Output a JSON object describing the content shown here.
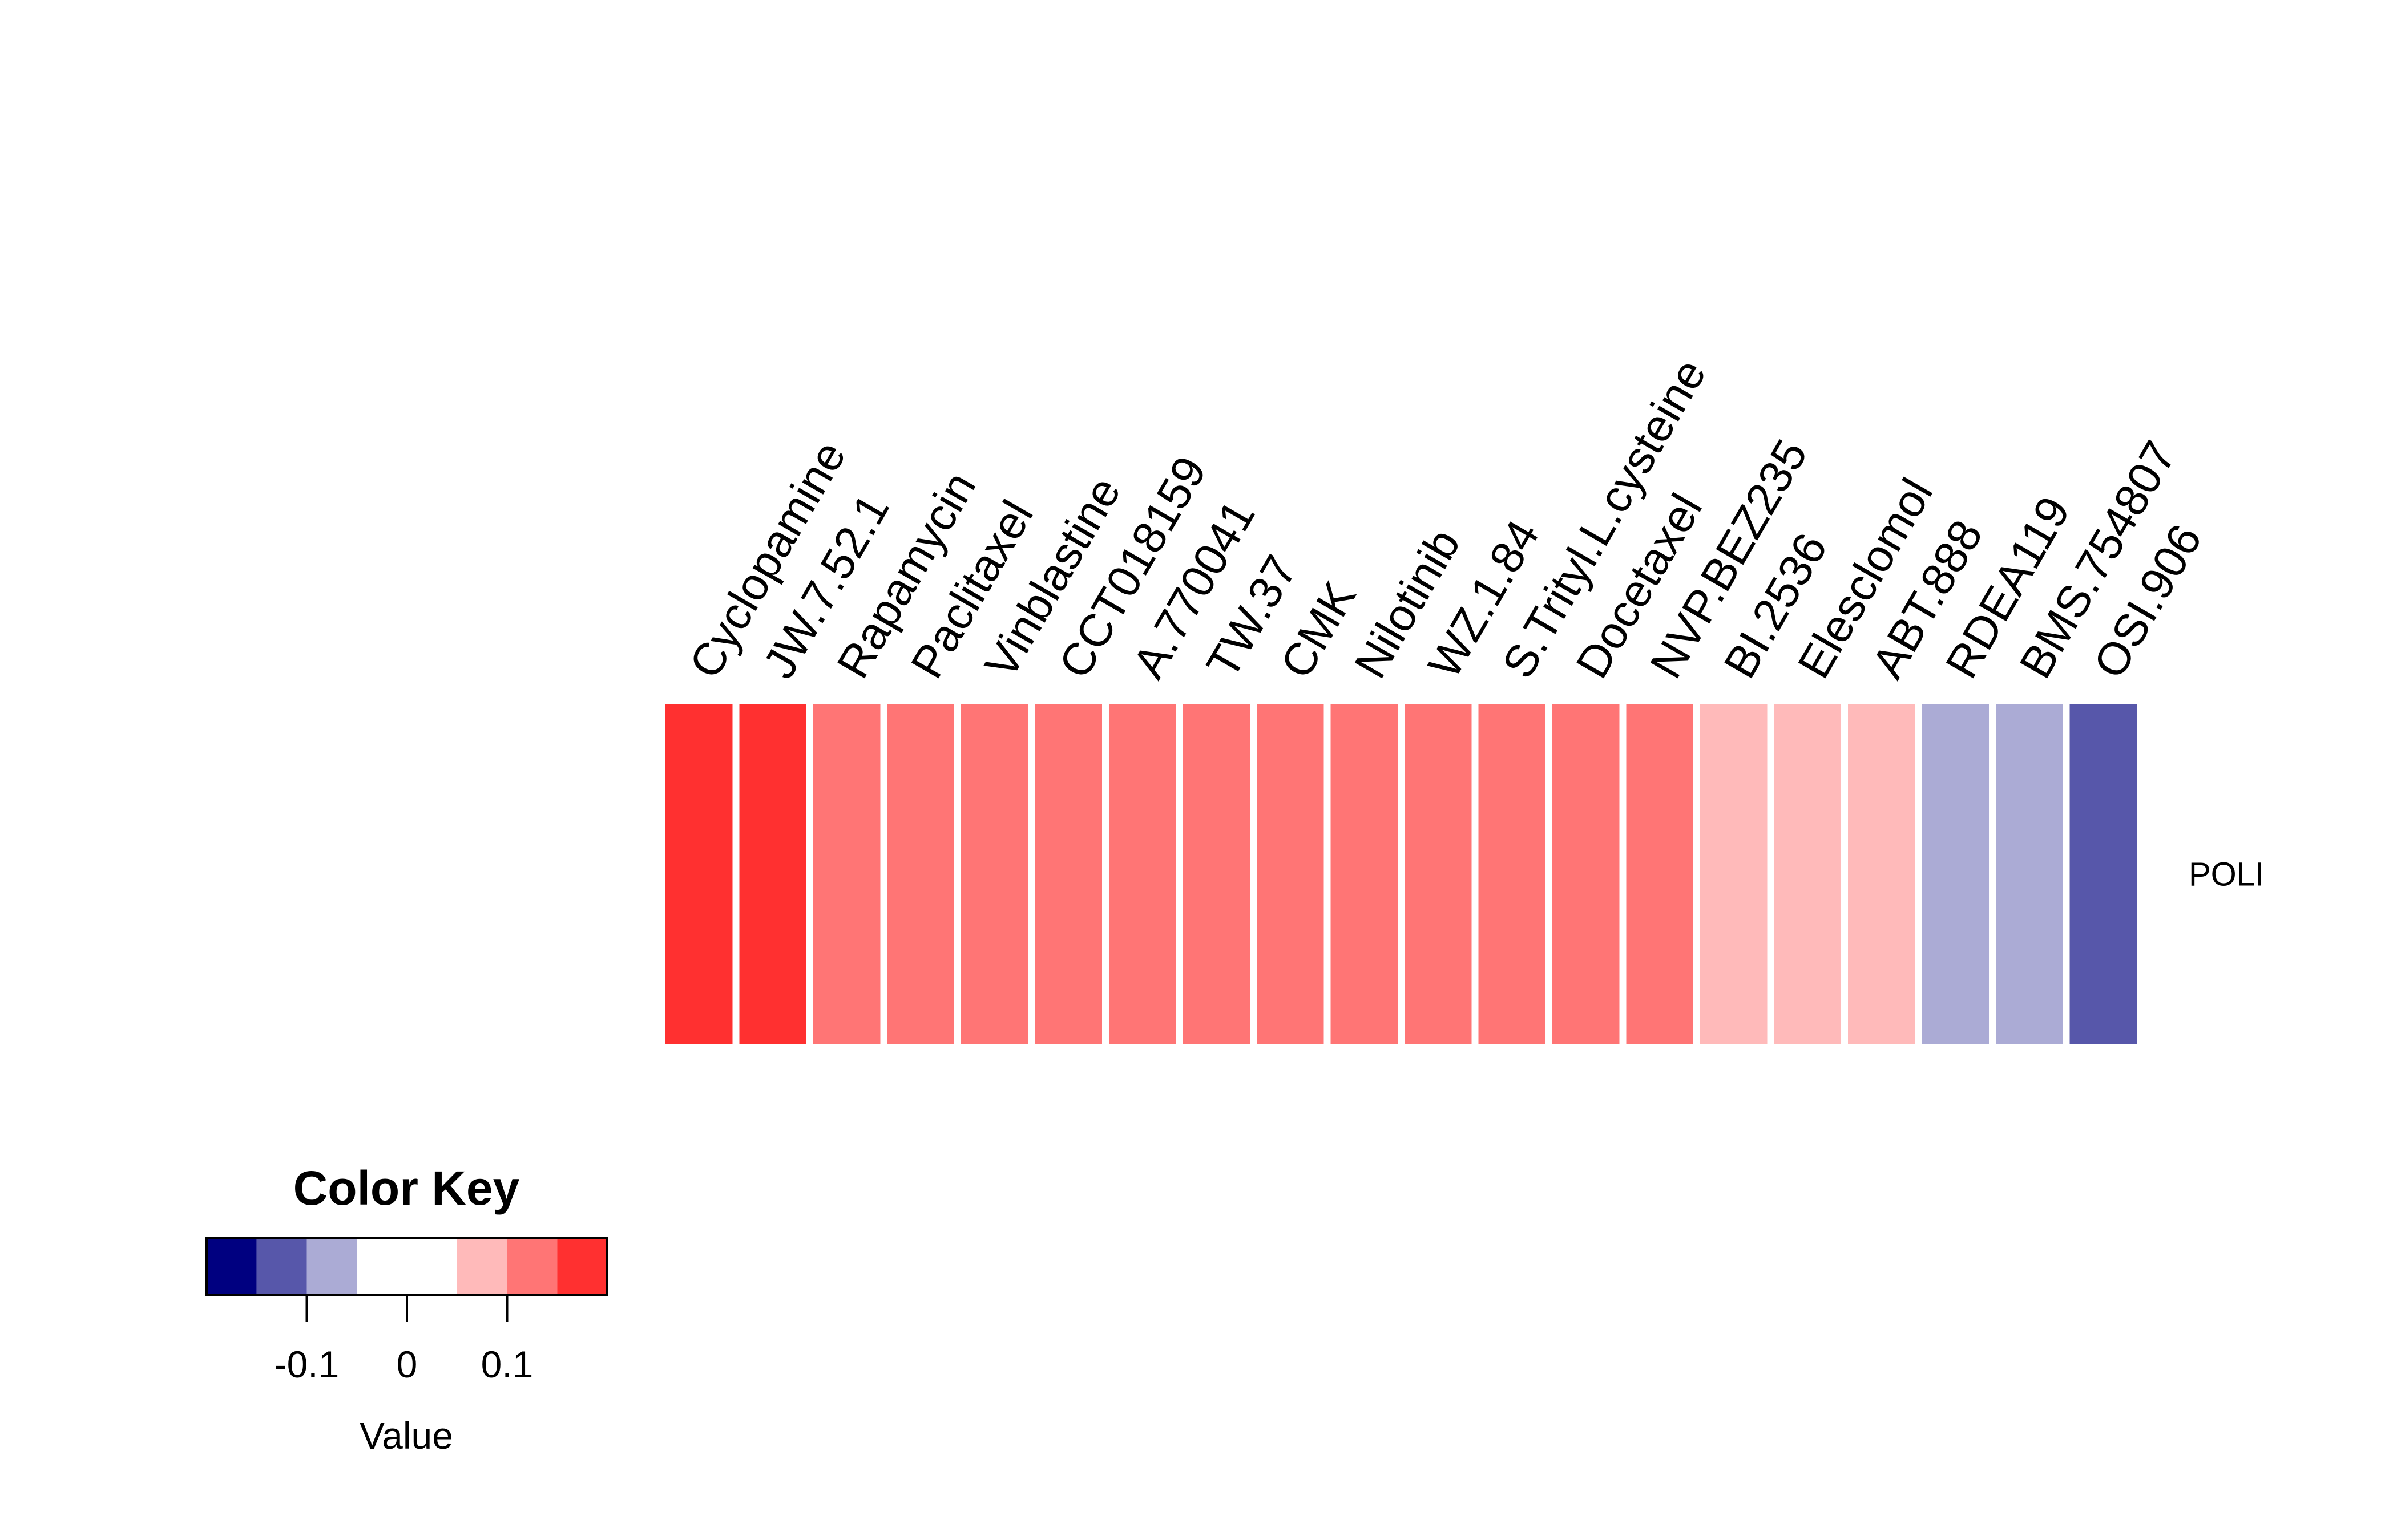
{
  "chart_data": {
    "type": "heatmap",
    "rows": [
      "POLI"
    ],
    "columns": [
      "Cyclopamine",
      "JW.7.52.1",
      "Rapamycin",
      "Paclitaxel",
      "Vinblastine",
      "CCT018159",
      "A.770041",
      "TW.37",
      "CMK",
      "Nilotinib",
      "WZ.1.84",
      "S.Trityl.L.cysteine",
      "Docetaxel",
      "NVP.BEZ235",
      "BI.2536",
      "Elesclomol",
      "ABT.888",
      "RDEA119",
      "BMS.754807",
      "OSI.906"
    ],
    "values": [
      [
        0.17,
        0.17,
        0.12,
        0.12,
        0.12,
        0.12,
        0.12,
        0.12,
        0.12,
        0.12,
        0.12,
        0.12,
        0.12,
        0.12,
        0.07,
        0.07,
        0.07,
        -0.07,
        -0.07,
        -0.12
      ]
    ],
    "color_key": {
      "title": "Color Key",
      "xlabel": "Value",
      "breaks": [
        -0.2,
        -0.15,
        -0.1,
        -0.05,
        0.05,
        0.1,
        0.15,
        0.2
      ],
      "colors": [
        "#000080",
        "#5757AA",
        "#ABABD5",
        "#FFFFFF",
        "#FFBABA",
        "#FF7575",
        "#FF3030"
      ],
      "ticks": [
        -0.1,
        0,
        0.1
      ],
      "tick_labels": [
        "-0.1",
        "0",
        "0.1"
      ]
    }
  }
}
